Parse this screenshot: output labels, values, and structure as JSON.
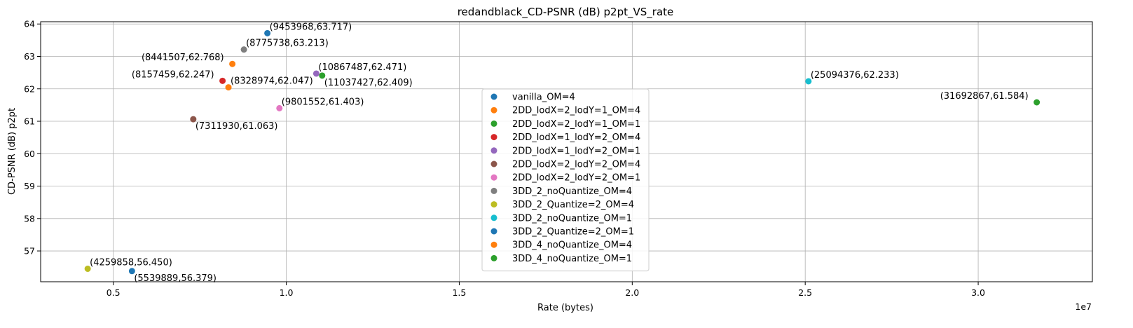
{
  "chart_data": {
    "type": "scatter",
    "title": "redandblack_CD-PSNR (dB) p2pt_VS_rate",
    "xlabel": "Rate (bytes)",
    "ylabel": "CD-PSNR (dB) p2pt",
    "x_offset_text": "1e7",
    "xlim": [
      2900000,
      33300000
    ],
    "ylim": [
      56.05,
      64.07
    ],
    "x_ticks": [
      5000000,
      10000000,
      15000000,
      20000000,
      25000000,
      30000000
    ],
    "x_tick_labels": [
      "0.5",
      "1.0",
      "1.5",
      "2.0",
      "2.5",
      "3.0"
    ],
    "y_ticks": [
      57,
      58,
      59,
      60,
      61,
      62,
      63,
      64
    ],
    "y_tick_labels": [
      "57",
      "58",
      "59",
      "60",
      "61",
      "62",
      "63",
      "64"
    ],
    "grid": true,
    "legend_position": "center",
    "series": [
      {
        "name": "vanilla_OM=4",
        "color": "#1f77b4",
        "x": 9453968,
        "y": 63.717,
        "label": "(9453968,63.717)",
        "label_pos": "above-right"
      },
      {
        "name": "2DD_lodX=2_lodY=1_OM=4",
        "color": "#ff7f0e",
        "x": 8441507,
        "y": 62.768,
        "label": "(8441507,62.768)",
        "label_pos": "above-left"
      },
      {
        "name": "2DD_lodX=2_lodY=1_OM=1",
        "color": "#2ca02c",
        "x": 11037427,
        "y": 62.409,
        "label": "(11037427,62.409)",
        "label_pos": "below-right"
      },
      {
        "name": "2DD_lodX=1_lodY=2_OM=4",
        "color": "#d62728",
        "x": 8157459,
        "y": 62.247,
        "label": "(8157459,62.247)",
        "label_pos": "above-left"
      },
      {
        "name": "2DD_lodX=1_lodY=2_OM=1",
        "color": "#9467bd",
        "x": 10867487,
        "y": 62.471,
        "label": "(10867487,62.471)",
        "label_pos": "above-right"
      },
      {
        "name": "2DD_lodX=2_lodY=2_OM=4",
        "color": "#8c564b",
        "x": 7311930,
        "y": 61.063,
        "label": "(7311930,61.063)",
        "label_pos": "below-right"
      },
      {
        "name": "2DD_lodX=2_lodY=2_OM=1",
        "color": "#e377c2",
        "x": 9801552,
        "y": 61.403,
        "label": "(9801552,61.403)",
        "label_pos": "above-right"
      },
      {
        "name": "3DD_2_noQuantize_OM=4",
        "color": "#7f7f7f",
        "x": 8775738,
        "y": 63.213,
        "label": "(8775738,63.213)",
        "label_pos": "above-right"
      },
      {
        "name": "3DD_2_Quantize=2_OM=4",
        "color": "#bcbd22",
        "x": 4259858,
        "y": 56.45,
        "label": "(4259858,56.450)",
        "label_pos": "above-right"
      },
      {
        "name": "3DD_2_noQuantize_OM=1",
        "color": "#17becf",
        "x": 25094376,
        "y": 62.233,
        "label": "(25094376,62.233)",
        "label_pos": "above-right"
      },
      {
        "name": "3DD_2_Quantize=2_OM=1",
        "color": "#1f77b4",
        "x": 5539889,
        "y": 56.379,
        "label": "(5539889,56.379)",
        "label_pos": "below-right"
      },
      {
        "name": "3DD_4_noQuantize_OM=4",
        "color": "#ff7f0e",
        "x": 8328974,
        "y": 62.047,
        "label": "(8328974,62.047)",
        "label_pos": "above-right"
      },
      {
        "name": "3DD_4_noQuantize_OM=1",
        "color": "#2ca02c",
        "x": 31692867,
        "y": 61.584,
        "label": "(31692867,61.584)",
        "label_pos": "above-left"
      }
    ]
  }
}
